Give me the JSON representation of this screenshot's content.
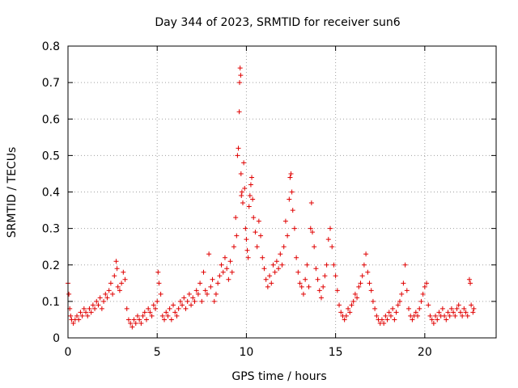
{
  "chart_data": {
    "type": "scatter",
    "title": "Day 344 of 2023, SRMTID for receiver sun6",
    "xlabel": "GPS time / hours",
    "ylabel": "SRMTID / TECUs",
    "xlim": [
      0,
      24
    ],
    "ylim": [
      0,
      0.8
    ],
    "x_ticks": [
      0,
      5,
      10,
      15,
      20
    ],
    "x_tick_labels": [
      "0",
      "5",
      "10",
      "15",
      "20"
    ],
    "y_ticks": [
      0,
      0.1,
      0.2,
      0.3,
      0.4,
      0.5,
      0.6,
      0.7,
      0.8
    ],
    "y_tick_labels": [
      "0",
      "0.1",
      "0.2",
      "0.3",
      "0.4",
      "0.5",
      "0.6",
      "0.7",
      "0.8"
    ],
    "grid": true,
    "marker": "plus",
    "color": "#e00000",
    "series": [
      {
        "name": "SRMTID",
        "points": [
          [
            0.0,
            0.15
          ],
          [
            0.05,
            0.12
          ],
          [
            0.1,
            0.08
          ],
          [
            0.15,
            0.06
          ],
          [
            0.2,
            0.05
          ],
          [
            0.3,
            0.04
          ],
          [
            0.4,
            0.05
          ],
          [
            0.5,
            0.06
          ],
          [
            0.6,
            0.05
          ],
          [
            0.7,
            0.07
          ],
          [
            0.8,
            0.06
          ],
          [
            0.9,
            0.08
          ],
          [
            1.0,
            0.07
          ],
          [
            1.1,
            0.06
          ],
          [
            1.2,
            0.08
          ],
          [
            1.3,
            0.07
          ],
          [
            1.4,
            0.09
          ],
          [
            1.5,
            0.08
          ],
          [
            1.6,
            0.1
          ],
          [
            1.7,
            0.09
          ],
          [
            1.8,
            0.11
          ],
          [
            1.9,
            0.08
          ],
          [
            2.0,
            0.1
          ],
          [
            2.1,
            0.12
          ],
          [
            2.2,
            0.11
          ],
          [
            2.3,
            0.13
          ],
          [
            2.4,
            0.15
          ],
          [
            2.5,
            0.12
          ],
          [
            2.6,
            0.17
          ],
          [
            2.7,
            0.21
          ],
          [
            2.75,
            0.19
          ],
          [
            2.8,
            0.14
          ],
          [
            2.9,
            0.13
          ],
          [
            3.0,
            0.15
          ],
          [
            3.1,
            0.18
          ],
          [
            3.2,
            0.16
          ],
          [
            3.3,
            0.08
          ],
          [
            3.4,
            0.05
          ],
          [
            3.5,
            0.04
          ],
          [
            3.6,
            0.03
          ],
          [
            3.7,
            0.05
          ],
          [
            3.8,
            0.04
          ],
          [
            3.9,
            0.06
          ],
          [
            4.0,
            0.05
          ],
          [
            4.1,
            0.04
          ],
          [
            4.2,
            0.06
          ],
          [
            4.3,
            0.07
          ],
          [
            4.4,
            0.05
          ],
          [
            4.5,
            0.08
          ],
          [
            4.6,
            0.07
          ],
          [
            4.7,
            0.06
          ],
          [
            4.8,
            0.09
          ],
          [
            4.9,
            0.08
          ],
          [
            5.0,
            0.1
          ],
          [
            5.05,
            0.18
          ],
          [
            5.1,
            0.15
          ],
          [
            5.2,
            0.12
          ],
          [
            5.3,
            0.06
          ],
          [
            5.4,
            0.05
          ],
          [
            5.5,
            0.07
          ],
          [
            5.6,
            0.06
          ],
          [
            5.7,
            0.08
          ],
          [
            5.8,
            0.05
          ],
          [
            5.9,
            0.09
          ],
          [
            6.0,
            0.07
          ],
          [
            6.1,
            0.06
          ],
          [
            6.2,
            0.08
          ],
          [
            6.3,
            0.1
          ],
          [
            6.4,
            0.09
          ],
          [
            6.5,
            0.11
          ],
          [
            6.6,
            0.08
          ],
          [
            6.7,
            0.1
          ],
          [
            6.8,
            0.12
          ],
          [
            6.9,
            0.09
          ],
          [
            7.0,
            0.11
          ],
          [
            7.1,
            0.1
          ],
          [
            7.2,
            0.13
          ],
          [
            7.3,
            0.12
          ],
          [
            7.4,
            0.15
          ],
          [
            7.5,
            0.1
          ],
          [
            7.6,
            0.18
          ],
          [
            7.7,
            0.13
          ],
          [
            7.8,
            0.12
          ],
          [
            7.9,
            0.23
          ],
          [
            8.0,
            0.14
          ],
          [
            8.1,
            0.16
          ],
          [
            8.2,
            0.1
          ],
          [
            8.3,
            0.12
          ],
          [
            8.4,
            0.15
          ],
          [
            8.5,
            0.17
          ],
          [
            8.6,
            0.2
          ],
          [
            8.7,
            0.18
          ],
          [
            8.8,
            0.22
          ],
          [
            8.9,
            0.19
          ],
          [
            9.0,
            0.16
          ],
          [
            9.1,
            0.21
          ],
          [
            9.2,
            0.18
          ],
          [
            9.3,
            0.25
          ],
          [
            9.4,
            0.33
          ],
          [
            9.45,
            0.28
          ],
          [
            9.5,
            0.5
          ],
          [
            9.55,
            0.52
          ],
          [
            9.6,
            0.62
          ],
          [
            9.62,
            0.7
          ],
          [
            9.65,
            0.74
          ],
          [
            9.68,
            0.72
          ],
          [
            9.7,
            0.45
          ],
          [
            9.72,
            0.39
          ],
          [
            9.75,
            0.4
          ],
          [
            9.8,
            0.37
          ],
          [
            9.85,
            0.48
          ],
          [
            9.9,
            0.41
          ],
          [
            9.95,
            0.3
          ],
          [
            10.0,
            0.27
          ],
          [
            10.05,
            0.24
          ],
          [
            10.1,
            0.22
          ],
          [
            10.15,
            0.36
          ],
          [
            10.2,
            0.39
          ],
          [
            10.25,
            0.42
          ],
          [
            10.3,
            0.44
          ],
          [
            10.35,
            0.38
          ],
          [
            10.4,
            0.33
          ],
          [
            10.5,
            0.29
          ],
          [
            10.6,
            0.25
          ],
          [
            10.7,
            0.32
          ],
          [
            10.8,
            0.28
          ],
          [
            10.9,
            0.22
          ],
          [
            11.0,
            0.19
          ],
          [
            11.1,
            0.16
          ],
          [
            11.2,
            0.14
          ],
          [
            11.3,
            0.17
          ],
          [
            11.4,
            0.15
          ],
          [
            11.5,
            0.2
          ],
          [
            11.6,
            0.18
          ],
          [
            11.7,
            0.21
          ],
          [
            11.8,
            0.19
          ],
          [
            11.9,
            0.23
          ],
          [
            12.0,
            0.2
          ],
          [
            12.1,
            0.25
          ],
          [
            12.2,
            0.32
          ],
          [
            12.3,
            0.28
          ],
          [
            12.4,
            0.38
          ],
          [
            12.45,
            0.44
          ],
          [
            12.5,
            0.45
          ],
          [
            12.55,
            0.4
          ],
          [
            12.6,
            0.35
          ],
          [
            12.7,
            0.3
          ],
          [
            12.8,
            0.22
          ],
          [
            12.9,
            0.18
          ],
          [
            13.0,
            0.15
          ],
          [
            13.1,
            0.14
          ],
          [
            13.2,
            0.12
          ],
          [
            13.3,
            0.16
          ],
          [
            13.4,
            0.2
          ],
          [
            13.5,
            0.14
          ],
          [
            13.6,
            0.3
          ],
          [
            13.65,
            0.37
          ],
          [
            13.7,
            0.29
          ],
          [
            13.8,
            0.25
          ],
          [
            13.9,
            0.19
          ],
          [
            14.0,
            0.16
          ],
          [
            14.1,
            0.13
          ],
          [
            14.2,
            0.11
          ],
          [
            14.3,
            0.14
          ],
          [
            14.4,
            0.17
          ],
          [
            14.5,
            0.2
          ],
          [
            14.6,
            0.27
          ],
          [
            14.7,
            0.3
          ],
          [
            14.8,
            0.25
          ],
          [
            14.9,
            0.2
          ],
          [
            15.0,
            0.17
          ],
          [
            15.1,
            0.13
          ],
          [
            15.2,
            0.09
          ],
          [
            15.3,
            0.07
          ],
          [
            15.4,
            0.06
          ],
          [
            15.5,
            0.05
          ],
          [
            15.6,
            0.06
          ],
          [
            15.7,
            0.08
          ],
          [
            15.8,
            0.07
          ],
          [
            15.9,
            0.09
          ],
          [
            16.0,
            0.1
          ],
          [
            16.1,
            0.12
          ],
          [
            16.2,
            0.11
          ],
          [
            16.3,
            0.14
          ],
          [
            16.4,
            0.15
          ],
          [
            16.5,
            0.17
          ],
          [
            16.6,
            0.2
          ],
          [
            16.7,
            0.23
          ],
          [
            16.8,
            0.18
          ],
          [
            16.9,
            0.15
          ],
          [
            17.0,
            0.13
          ],
          [
            17.1,
            0.1
          ],
          [
            17.2,
            0.08
          ],
          [
            17.3,
            0.06
          ],
          [
            17.4,
            0.05
          ],
          [
            17.5,
            0.04
          ],
          [
            17.6,
            0.05
          ],
          [
            17.7,
            0.04
          ],
          [
            17.8,
            0.06
          ],
          [
            17.9,
            0.05
          ],
          [
            18.0,
            0.07
          ],
          [
            18.1,
            0.06
          ],
          [
            18.2,
            0.08
          ],
          [
            18.3,
            0.05
          ],
          [
            18.4,
            0.07
          ],
          [
            18.5,
            0.09
          ],
          [
            18.6,
            0.1
          ],
          [
            18.7,
            0.12
          ],
          [
            18.8,
            0.15
          ],
          [
            18.9,
            0.2
          ],
          [
            19.0,
            0.13
          ],
          [
            19.1,
            0.08
          ],
          [
            19.2,
            0.06
          ],
          [
            19.3,
            0.05
          ],
          [
            19.4,
            0.06
          ],
          [
            19.5,
            0.07
          ],
          [
            19.6,
            0.06
          ],
          [
            19.7,
            0.08
          ],
          [
            19.8,
            0.1
          ],
          [
            19.9,
            0.12
          ],
          [
            20.0,
            0.14
          ],
          [
            20.1,
            0.15
          ],
          [
            20.2,
            0.09
          ],
          [
            20.3,
            0.06
          ],
          [
            20.4,
            0.05
          ],
          [
            20.5,
            0.04
          ],
          [
            20.6,
            0.06
          ],
          [
            20.7,
            0.05
          ],
          [
            20.8,
            0.07
          ],
          [
            20.9,
            0.06
          ],
          [
            21.0,
            0.08
          ],
          [
            21.1,
            0.06
          ],
          [
            21.2,
            0.05
          ],
          [
            21.3,
            0.07
          ],
          [
            21.4,
            0.06
          ],
          [
            21.5,
            0.08
          ],
          [
            21.6,
            0.07
          ],
          [
            21.7,
            0.06
          ],
          [
            21.8,
            0.08
          ],
          [
            21.9,
            0.09
          ],
          [
            22.0,
            0.07
          ],
          [
            22.1,
            0.06
          ],
          [
            22.2,
            0.08
          ],
          [
            22.3,
            0.07
          ],
          [
            22.4,
            0.06
          ],
          [
            22.5,
            0.16
          ],
          [
            22.55,
            0.15
          ],
          [
            22.6,
            0.09
          ],
          [
            22.7,
            0.07
          ],
          [
            22.75,
            0.08
          ]
        ]
      }
    ]
  }
}
